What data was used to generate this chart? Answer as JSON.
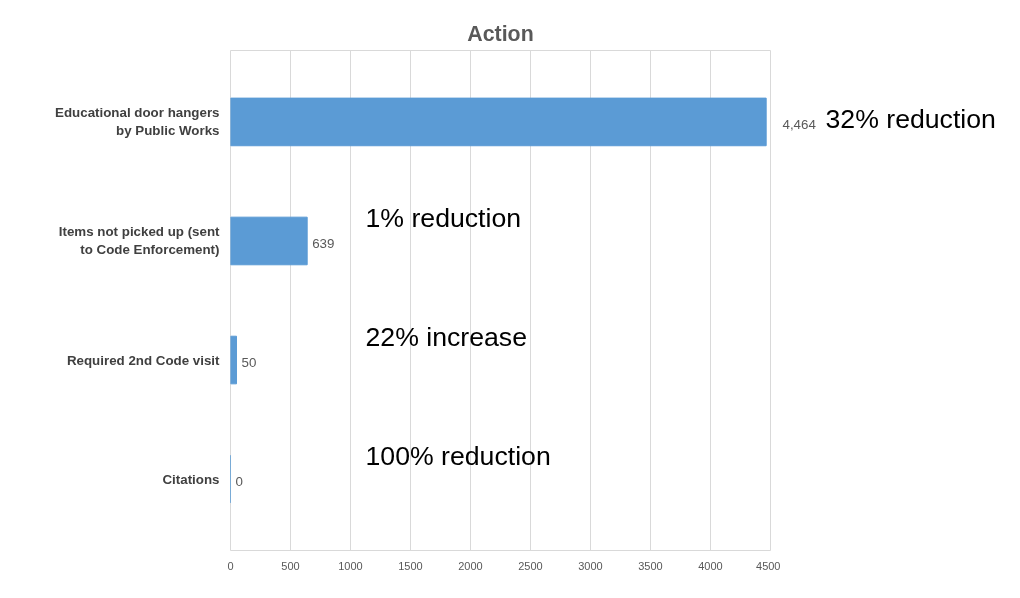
{
  "chart_data": {
    "type": "bar",
    "orientation": "horizontal",
    "title": "Action",
    "categories": [
      "Educational door hangers by Public Works",
      "Items not picked up (sent to Code Enforcement)",
      "Required 2nd Code visit",
      "Citations"
    ],
    "values": [
      4464,
      639,
      50,
      0
    ],
    "value_labels": [
      "4,464",
      "639",
      "50",
      "0"
    ],
    "color": "#5b9bd5",
    "xlim": [
      0,
      4500
    ],
    "xticks": [
      0,
      500,
      1000,
      1500,
      2000,
      2500,
      3000,
      3500,
      4000,
      4500
    ],
    "grid": "x",
    "annotations": [
      "32% reduction",
      "1% reduction",
      "22% increase",
      "100% reduction"
    ]
  }
}
